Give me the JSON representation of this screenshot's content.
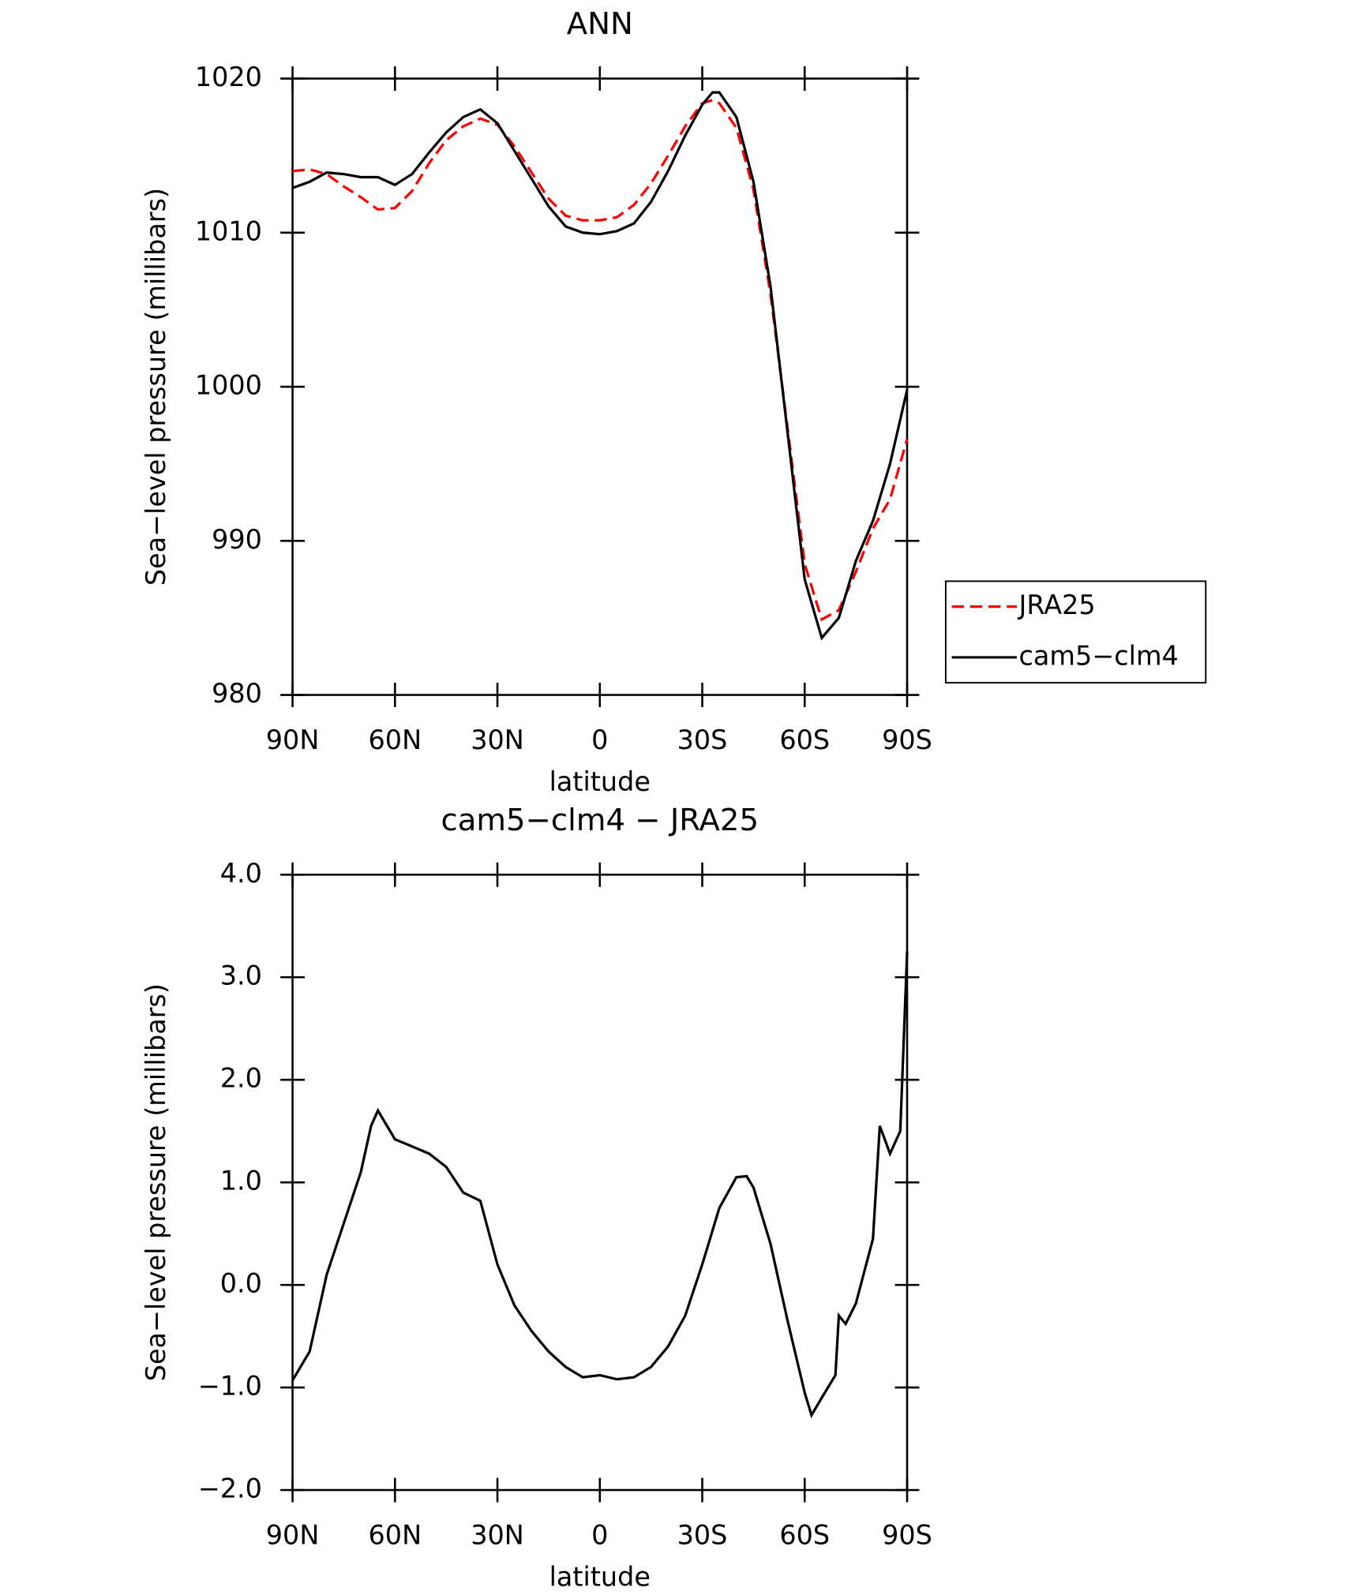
{
  "chart_data": [
    {
      "type": "line",
      "title": "ANN",
      "xlabel": "latitude",
      "ylabel": "Sea−level pressure (millibars)",
      "xlim": [
        90,
        -90
      ],
      "ylim": [
        980,
        1020
      ],
      "xticks": [
        {
          "value": 90,
          "label": "90N"
        },
        {
          "value": 60,
          "label": "60N"
        },
        {
          "value": 30,
          "label": "30N"
        },
        0,
        {
          "value": -30,
          "label": "30S"
        },
        {
          "value": -60,
          "label": "60S"
        },
        {
          "value": -90,
          "label": "90S"
        }
      ],
      "yticks": [
        980,
        990,
        1000,
        1010,
        1020
      ],
      "legend": "right",
      "x": [
        90,
        85,
        80,
        75,
        70,
        65,
        60,
        55,
        50,
        45,
        40,
        35,
        30,
        25,
        20,
        15,
        10,
        5,
        0,
        -5,
        -10,
        -15,
        -20,
        -25,
        -30,
        -33,
        -35,
        -40,
        -45,
        -50,
        -55,
        -60,
        -65,
        -70,
        -75,
        -80,
        -85,
        -90
      ],
      "series": [
        {
          "name": "JRA25",
          "color": "#ff0000",
          "dash": true,
          "values": [
            1014.0,
            1014.1,
            1013.8,
            1013.0,
            1012.3,
            1011.5,
            1011.6,
            1012.7,
            1014.5,
            1016.0,
            1016.9,
            1017.4,
            1017.0,
            1015.6,
            1013.9,
            1012.2,
            1011.1,
            1010.8,
            1010.8,
            1011.0,
            1011.8,
            1013.2,
            1015.0,
            1016.9,
            1018.4,
            1018.6,
            1018.4,
            1016.8,
            1012.8,
            1006.0,
            997.3,
            988.5,
            984.9,
            985.5,
            988.0,
            990.8,
            992.7,
            996.6
          ]
        },
        {
          "name": "cam5−clm4",
          "color": "#000000",
          "dash": false,
          "values": [
            1012.9,
            1013.3,
            1013.9,
            1013.8,
            1013.6,
            1013.6,
            1013.1,
            1013.8,
            1015.2,
            1016.5,
            1017.5,
            1018.0,
            1017.1,
            1015.3,
            1013.5,
            1011.7,
            1010.4,
            1010.0,
            1009.9,
            1010.1,
            1010.6,
            1012.0,
            1014.0,
            1016.3,
            1018.3,
            1019.1,
            1019.1,
            1017.5,
            1013.3,
            1006.5,
            997.0,
            987.5,
            983.7,
            985.0,
            988.7,
            991.3,
            995.0,
            999.8
          ]
        }
      ]
    },
    {
      "type": "line",
      "title": "cam5−clm4 − JRA25",
      "xlabel": "latitude",
      "ylabel": "Sea−level pressure (millibars)",
      "xlim": [
        90,
        -90
      ],
      "ylim": [
        -2,
        4
      ],
      "xticks": [
        {
          "value": 90,
          "label": "90N"
        },
        {
          "value": 60,
          "label": "60N"
        },
        {
          "value": 30,
          "label": "30N"
        },
        0,
        {
          "value": -30,
          "label": "30S"
        },
        {
          "value": -60,
          "label": "60S"
        },
        {
          "value": -90,
          "label": "90S"
        }
      ],
      "yticks": [
        {
          "value": -2,
          "label": "−2.0"
        },
        {
          "value": -1,
          "label": "−1.0"
        },
        {
          "value": 0,
          "label": "0.0"
        },
        {
          "value": 1,
          "label": "1.0"
        },
        {
          "value": 2,
          "label": "2.0"
        },
        {
          "value": 3,
          "label": "3.0"
        },
        {
          "value": 4,
          "label": "4.0"
        }
      ],
      "x": [
        90,
        85,
        80,
        75,
        70,
        67,
        65,
        60,
        55,
        50,
        45,
        40,
        35,
        30,
        25,
        20,
        15,
        10,
        5,
        0,
        -5,
        -10,
        -15,
        -20,
        -25,
        -30,
        -35,
        -40,
        -43,
        -45,
        -50,
        -55,
        -60,
        -62,
        -65,
        -69,
        -70,
        -72,
        -75,
        -80,
        -82,
        -85,
        -88,
        -90
      ],
      "series": [
        {
          "color": "#000000",
          "dash": false,
          "values": [
            -0.93,
            -0.65,
            0.1,
            0.6,
            1.1,
            1.55,
            1.7,
            1.42,
            1.35,
            1.28,
            1.15,
            0.9,
            0.82,
            0.2,
            -0.2,
            -0.45,
            -0.65,
            -0.8,
            -0.9,
            -0.88,
            -0.92,
            -0.9,
            -0.8,
            -0.6,
            -0.3,
            0.2,
            0.75,
            1.05,
            1.06,
            0.95,
            0.4,
            -0.35,
            -1.05,
            -1.27,
            -1.1,
            -0.88,
            -0.3,
            -0.38,
            -0.18,
            0.45,
            1.55,
            1.28,
            1.5,
            3.25
          ]
        }
      ]
    }
  ]
}
